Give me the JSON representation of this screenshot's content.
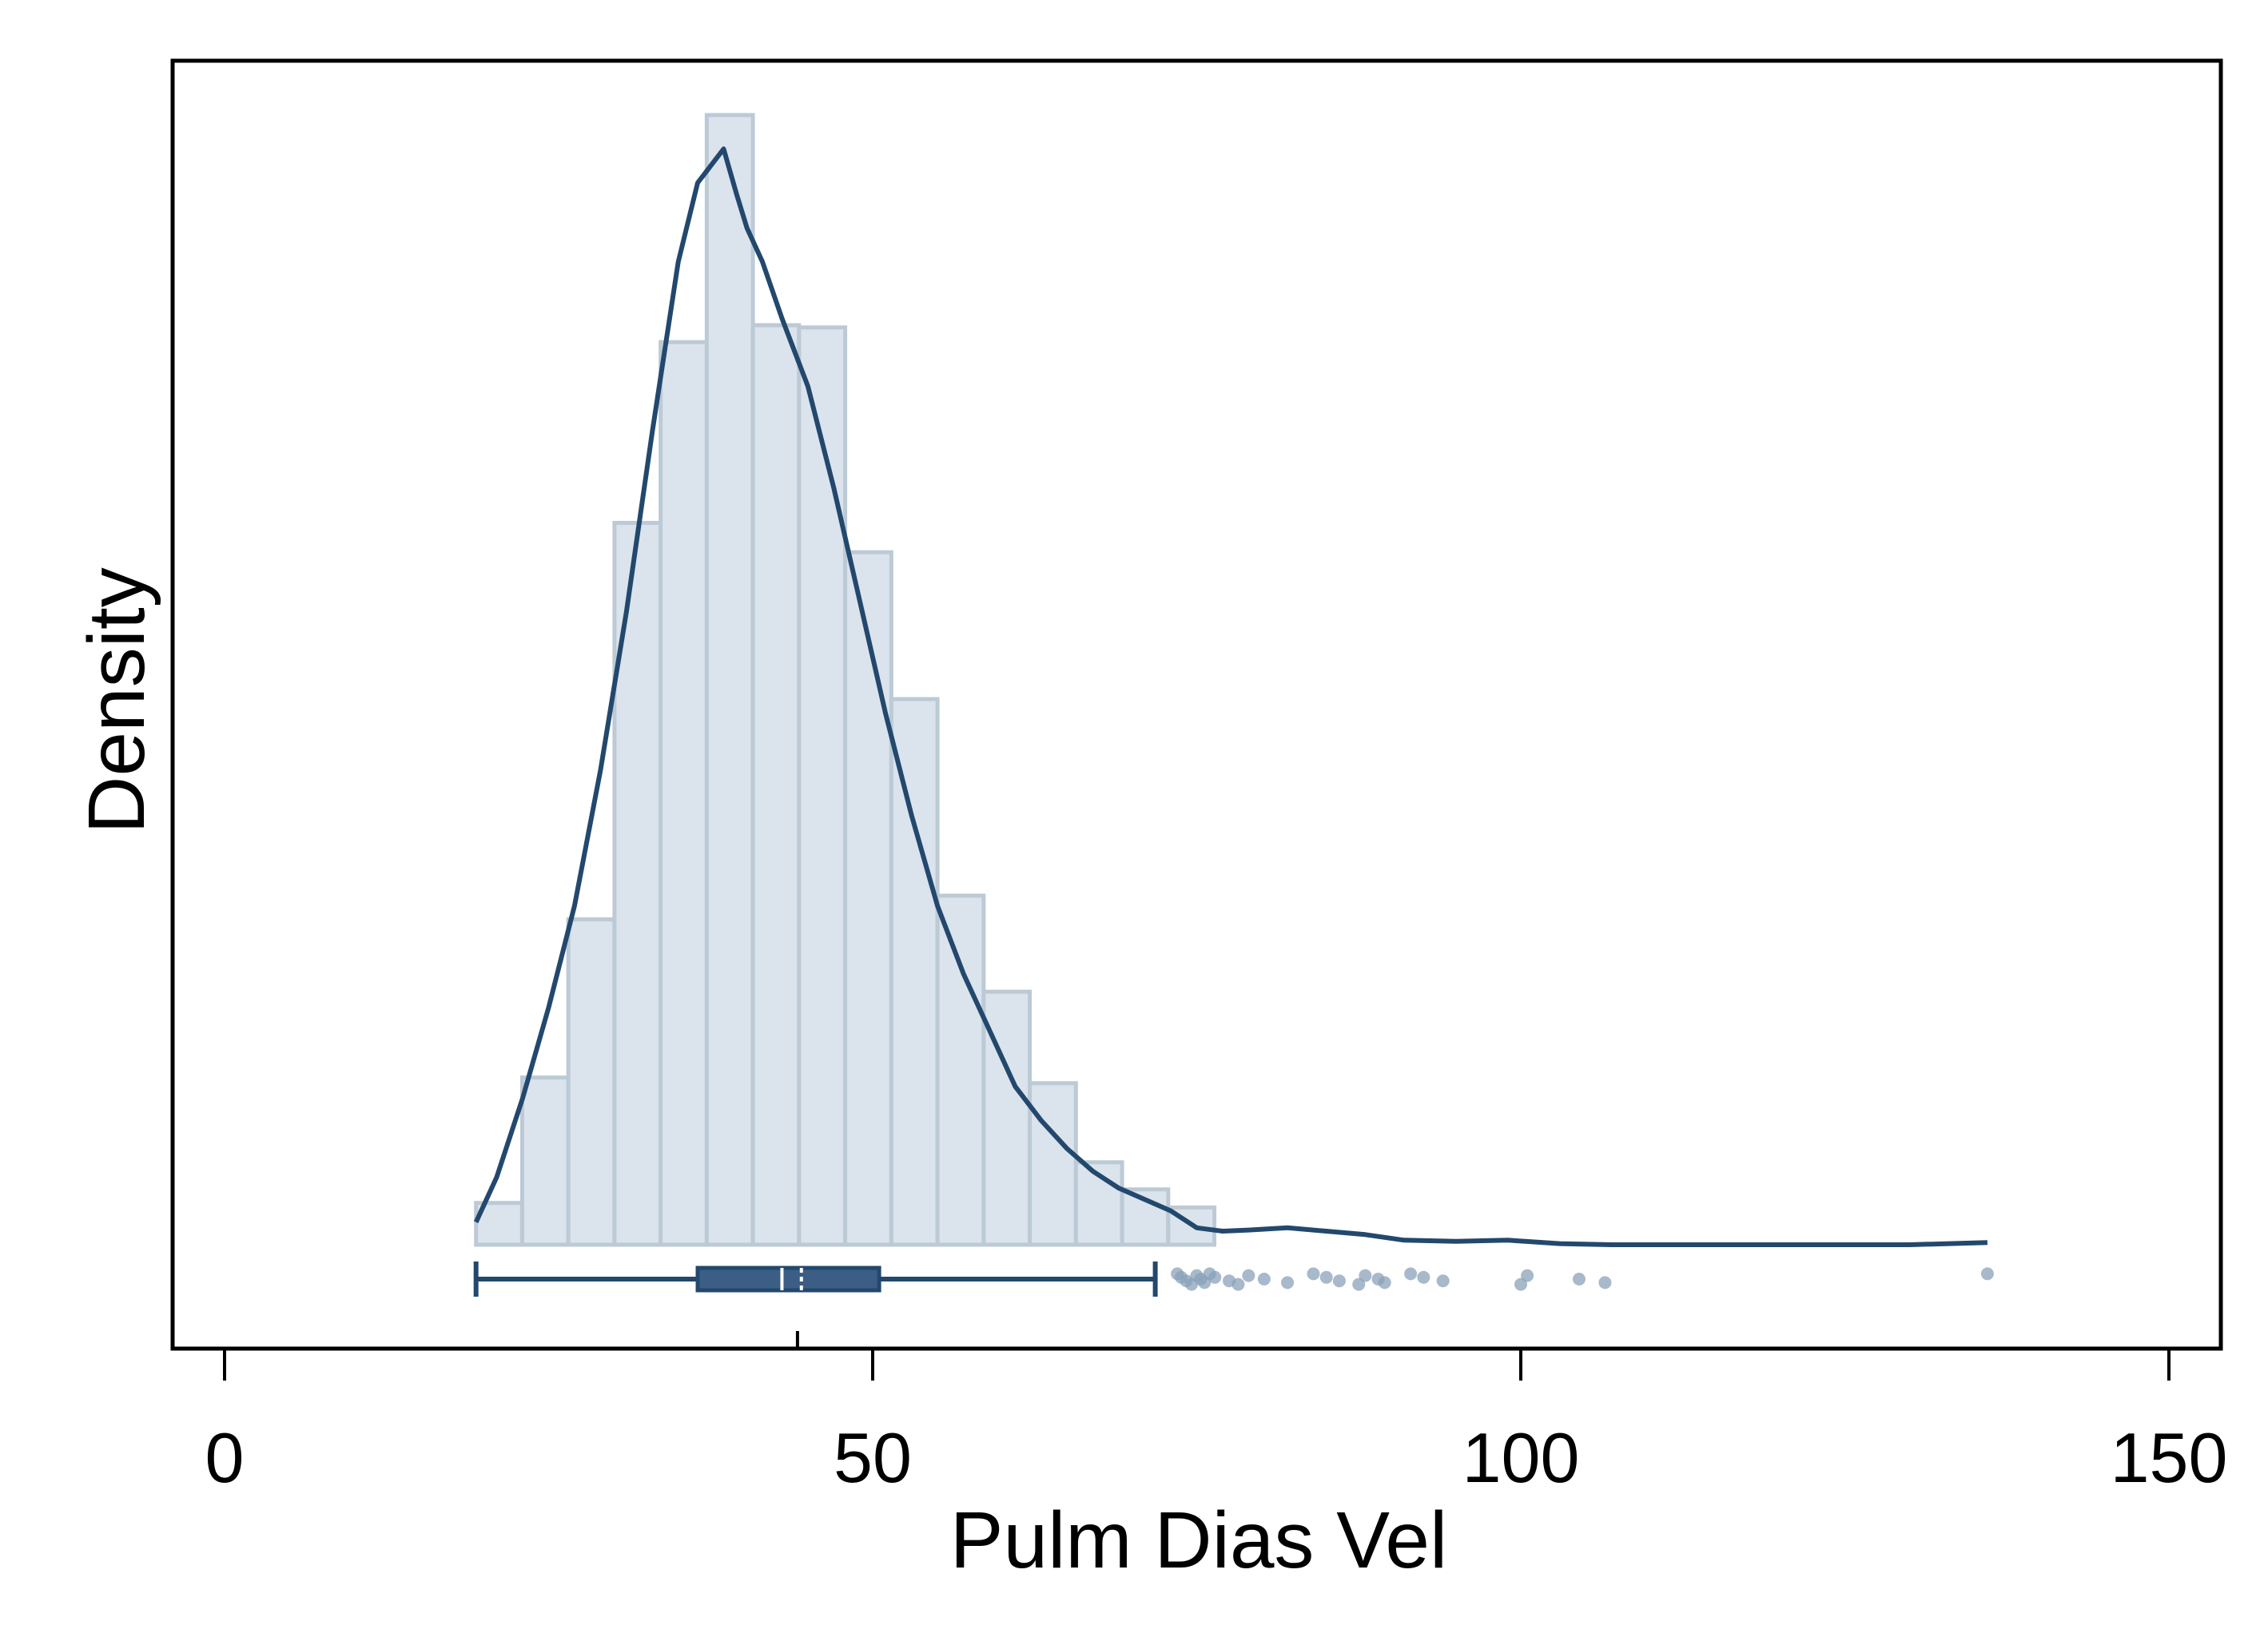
{
  "chart_data": {
    "type": "bar",
    "subtype": "histogram-with-density-and-boxplot",
    "xlabel": "Pulm Dias Vel",
    "ylabel": "Density",
    "xlim": [
      -2,
      154
    ],
    "ylim": [
      0,
      1.12
    ],
    "x_ticks": [
      0,
      50,
      100,
      150
    ],
    "x_tick_labels": [
      "0",
      "50",
      "100",
      "150"
    ],
    "y_ticks_shown": false,
    "bin_width": 3.56,
    "bins": [
      {
        "x0": 19.4,
        "density": 0.037
      },
      {
        "x0": 22.96,
        "density": 0.148
      },
      {
        "x0": 26.52,
        "density": 0.288
      },
      {
        "x0": 30.08,
        "density": 0.639
      },
      {
        "x0": 33.64,
        "density": 0.799
      },
      {
        "x0": 37.2,
        "density": 1.0
      },
      {
        "x0": 40.76,
        "density": 0.814
      },
      {
        "x0": 44.32,
        "density": 0.812
      },
      {
        "x0": 47.88,
        "density": 0.613
      },
      {
        "x0": 51.44,
        "density": 0.483
      },
      {
        "x0": 55.0,
        "density": 0.309
      },
      {
        "x0": 58.56,
        "density": 0.224
      },
      {
        "x0": 62.12,
        "density": 0.143
      },
      {
        "x0": 65.68,
        "density": 0.073
      },
      {
        "x0": 69.24,
        "density": 0.049
      },
      {
        "x0": 72.8,
        "density": 0.033
      }
    ],
    "density_curve": {
      "x": [
        19.4,
        21,
        23,
        25,
        27,
        29,
        31,
        33,
        35,
        36.5,
        37.5,
        38.5,
        39.5,
        40.3,
        41.5,
        43,
        45,
        47,
        49,
        51,
        53,
        55,
        57,
        59,
        61,
        63,
        65,
        67,
        69,
        71,
        73,
        75,
        77,
        79,
        82,
        85,
        88,
        91,
        95,
        99,
        103,
        107,
        111,
        115,
        120,
        125,
        130,
        136
      ],
      "y": [
        0.02,
        0.06,
        0.13,
        0.21,
        0.3,
        0.42,
        0.56,
        0.72,
        0.87,
        0.94,
        0.955,
        0.97,
        0.93,
        0.9,
        0.87,
        0.82,
        0.76,
        0.67,
        0.57,
        0.47,
        0.38,
        0.3,
        0.24,
        0.19,
        0.14,
        0.11,
        0.085,
        0.065,
        0.05,
        0.04,
        0.03,
        0.015,
        0.012,
        0.013,
        0.015,
        0.012,
        0.009,
        0.004,
        0.003,
        0.004,
        0.001,
        0.0,
        0.0,
        0.0,
        0.0,
        0.0,
        0.0,
        0.002
      ]
    },
    "boxplot": {
      "whisker_low": 19.4,
      "q1": 36.5,
      "median": 43.0,
      "mean": 44.5,
      "q3": 50.5,
      "whisker_high": 71.8,
      "mean_tick": 44.2,
      "outliers": [
        73.5,
        73.8,
        74.2,
        74.6,
        75.0,
        75.3,
        75.6,
        76.0,
        76.4,
        77.5,
        78.2,
        79.0,
        80.2,
        82.0,
        84.0,
        85.0,
        86.0,
        87.5,
        88.0,
        89.0,
        89.5,
        91.5,
        92.5,
        94.0,
        100.0,
        100.5,
        104.5,
        106.5,
        136.0
      ]
    },
    "colors": {
      "bar_fill": "#dbe3ec",
      "bar_stroke": "#bccad6",
      "curve": "#23486d",
      "box_fill": "#3c5e84",
      "outlier": "#8aa1b8",
      "frame": "#000000"
    },
    "grid": false,
    "legend": "none"
  }
}
